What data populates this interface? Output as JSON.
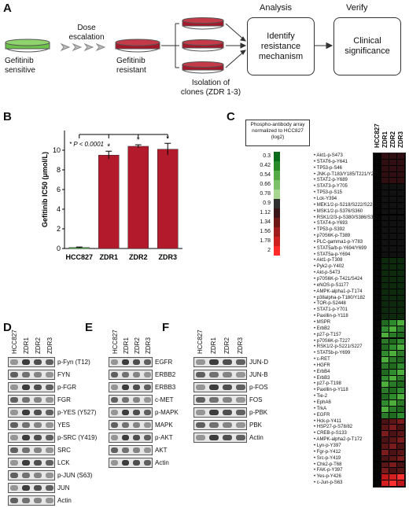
{
  "panel_a": {
    "letter": "A",
    "labels": {
      "sensitive": "Gefitinib\nsensitive",
      "escalation": "Dose\nescalation",
      "resistant": "Gefitinib\nresistant",
      "isolation": "Isolation of\nclones (ZDR 1-3)",
      "analysis_head": "Analysis",
      "verify_head": "Verify",
      "analysis_box": "Identify\nresistance\nmechanism",
      "verify_box": "Clinical\nsignificance"
    },
    "colors": {
      "sensitive": "#6cc24a",
      "resistant": "#a3192a"
    }
  },
  "panel_b": {
    "letter": "B",
    "chart_data": {
      "type": "bar",
      "categories": [
        "HCC827",
        "ZDR1",
        "ZDR2",
        "ZDR3"
      ],
      "values": [
        0.1,
        9.5,
        10.4,
        10.1
      ],
      "errors": [
        0.05,
        0.4,
        0.15,
        0.6
      ],
      "ylabel": "Gefitinib IC50 (μmol/L)",
      "ylim": [
        0,
        12
      ],
      "yticks": [
        0,
        2,
        4,
        6,
        8,
        10
      ],
      "significance": "* P < 0.0001",
      "colors": {
        "control": "#3a9a3a",
        "resistant": "#b31b2c"
      }
    }
  },
  "panel_c": {
    "letter": "C",
    "legend_title": "Phospho-antibody array\nnormalized to HCC827\n(log2)",
    "legend_values": [
      "0.3",
      "0.42",
      "0.54",
      "0.66",
      "0.78",
      "0.9",
      "1.12",
      "1.34",
      "1.56",
      "1.78",
      "2"
    ],
    "columns": [
      "HCC827",
      "ZDR1",
      "ZDR2",
      "ZDR3"
    ],
    "rows": [
      "Akt1-p-S473",
      "STAT6-p-Y641",
      "TP53-p-S46",
      "JNK-p-T183/Y185/T221/Y223",
      "STAT2-p-Y689",
      "STAT3-p-Y705",
      "TP53-p-S15",
      "Lck-Y394",
      "MEK1/2-p-S218/S222/S226",
      "MSK1/2-p-S376/S360",
      "RSK1/2/3-p-S380/S386/S377",
      "STAT4-p-Y693",
      "TP53-p-S392",
      "p70S6K-p-T389",
      "PLC-gamma1-p-Y783",
      "STAT5a/b-p-Y694/Y699",
      "STAT5a-p-Y694",
      "Akt1-p-T308",
      "Pyk2-p-Y402",
      "Akt-p-S473",
      "p70S6K-p-T421/S424",
      "eNOS-p-S1177",
      "AMPK-alpha1-p-T174",
      "p38alpha-p-T180/Y182",
      "TOR-p-S2448",
      "STAT1-p-Y701",
      "Paxillin-p-Y118",
      "MSPR",
      "ErbB2",
      "p27-p-T157",
      "p70S6K-p-T227",
      "RSK1/2-p-S221/S227",
      "STAT5b-p-Y699",
      "c-RET",
      "HGFR",
      "ErbB4",
      "ErbB3",
      "p27-p-T198",
      "Paxillin-p-Y118",
      "Tie-2",
      "EphA6",
      "TrkA",
      "EGFR",
      "Hck-p-Y411",
      "HSP27-p-S78/82",
      "CREB-p-S133",
      "AMPK-alpha2-p-T172",
      "Lyn-p-Y397",
      "Fgr-p-Y412",
      "Src-p-Y419",
      "Chk2-p-T68",
      "FAK-p-Y397",
      "Yes-p-Y426",
      "c-Jun-p-S63"
    ]
  },
  "panel_d": {
    "letter": "D",
    "lanes": [
      "HCC827",
      "ZDR1",
      "ZDR2",
      "ZDR3"
    ],
    "bands": [
      "p-Fyn (T12)",
      "FYN",
      "p-FGR",
      "FGR",
      "p-YES (Y527)",
      "YES",
      "p-SRC (Y419)",
      "SRC",
      "LCK",
      "p-JUN (S63)",
      "JUN",
      "Actin"
    ]
  },
  "panel_e": {
    "letter": "E",
    "lanes": [
      "HCC827",
      "ZDR1",
      "ZDR2",
      "ZDR3"
    ],
    "bands": [
      "EGFR",
      "ERBB2",
      "ERBB3",
      "c-MET",
      "p-MAPK",
      "MAPK",
      "p-AKT",
      "AKT",
      "Actin"
    ]
  },
  "panel_f": {
    "letter": "F",
    "lanes": [
      "HCC827",
      "ZDR1",
      "ZDR2",
      "ZDR3"
    ],
    "bands": [
      "JUN-D",
      "JUN-B",
      "p-FOS",
      "FOS",
      "p-PBK",
      "PBK",
      "Actin"
    ]
  }
}
